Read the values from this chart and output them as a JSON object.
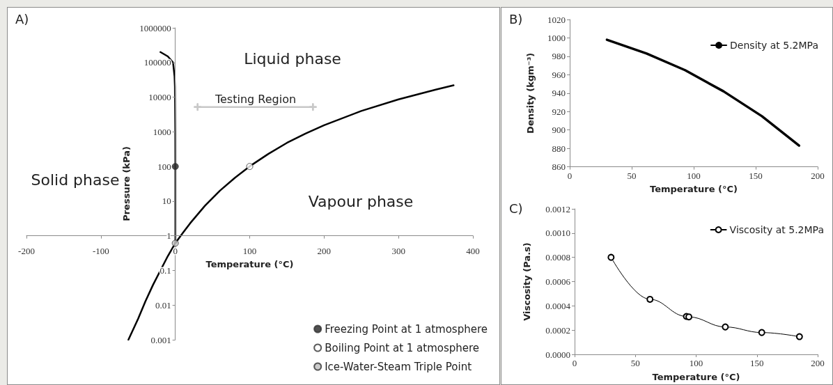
{
  "chart_data": [
    {
      "type": "line",
      "title": "A)",
      "xlabel": "Temperature (°C)",
      "ylabel": "Pressure (kPa)",
      "log": "y",
      "xlim": [
        -200,
        400
      ],
      "xticks": [
        -200,
        -100,
        0,
        100,
        200,
        300,
        400
      ],
      "ylim": [
        0.001,
        1000000
      ],
      "yticks": [
        0.001,
        0.01,
        0.1,
        1,
        10,
        100,
        1000,
        10000,
        100000,
        1000000
      ],
      "legend": "bottom right",
      "series": [
        {
          "color": "#000000",
          "x": [
            0.01,
            0,
            -0.1,
            -0.5,
            -1,
            -3,
            -10,
            -20
          ],
          "values": [
            0.61,
            100,
            1000,
            20000,
            40000,
            100000,
            150000,
            200000
          ]
        },
        {
          "color": "#000000",
          "x": [
            0.01,
            10,
            20,
            40,
            60,
            80,
            100,
            125,
            150,
            175,
            200,
            250,
            300,
            350,
            374
          ],
          "values": [
            0.61,
            1.2,
            2.3,
            7.4,
            20,
            47,
            101,
            230,
            480,
            890,
            1550,
            4000,
            8600,
            16500,
            22000
          ]
        },
        {
          "color": "#000000",
          "x": [
            -63,
            -50,
            -40,
            -30,
            -20,
            -10,
            0.01
          ],
          "values": [
            0.001,
            0.004,
            0.013,
            0.038,
            0.1,
            0.26,
            0.61
          ]
        },
        {
          "color": "#c8c8c8",
          "marker": "cross",
          "x": [
            30,
            185
          ],
          "values": [
            5200,
            5200
          ]
        },
        {
          "type": "scatter",
          "name": "Freezing Point at 1 atmosphere",
          "color": "#262626",
          "marker": "circle",
          "x": [
            0
          ],
          "values": [
            100
          ]
        },
        {
          "type": "scatter",
          "name": "Boiling Point at 1 atmosphere",
          "color": "#ffffff",
          "marker": "circle",
          "x": [
            100
          ],
          "values": [
            100
          ]
        },
        {
          "type": "scatter",
          "name": "Ice-Water-Steam Triple Point",
          "color": "#bfbfbf",
          "marker": "circle",
          "x": [
            0.01
          ],
          "values": [
            0.61
          ]
        }
      ],
      "annotations": [
        "Liquid phase",
        "Testing Region",
        "Solid phase",
        "Vapour phase"
      ]
    },
    {
      "type": "line",
      "title": "B)",
      "xlabel": "Temperature (°C)",
      "ylabel": "Density (kgm⁻³)",
      "xlim": [
        0,
        200
      ],
      "xticks": [
        0,
        50,
        100,
        150,
        200
      ],
      "ylim": [
        860,
        1020
      ],
      "yticks": [
        860,
        880,
        900,
        920,
        940,
        960,
        980,
        1000,
        1020
      ],
      "legend": "top right",
      "marker": "none",
      "series": [
        {
          "name": "Density at 5.2MPa",
          "color": "#000000",
          "x": [
            30,
            62,
            93,
            124,
            155,
            185
          ],
          "values": [
            998,
            983,
            965,
            942,
            915,
            883
          ]
        }
      ]
    },
    {
      "type": "line",
      "title": "C)",
      "xlabel": "Temperature (°C)",
      "ylabel": "Viscosity (Pa.s)",
      "xlim": [
        0,
        200
      ],
      "xticks": [
        0,
        50,
        100,
        150,
        200
      ],
      "ylim": [
        0,
        0.0012
      ],
      "yticks": [
        {
          "value": 0,
          "label": "0.0000"
        },
        0.0002,
        0.0004,
        0.0006,
        0.0008,
        {
          "value": 0.001,
          "label": "0.0010"
        },
        0.0012
      ],
      "legend": "top right",
      "marker": "circle",
      "series": [
        {
          "name": "Viscosity at 5.2MPa",
          "color": "#000000",
          "x": [
            30,
            62,
            92,
            94,
            124,
            154,
            185
          ],
          "values": [
            0.0008,
            0.000454,
            0.000313,
            0.000309,
            0.000226,
            0.00018,
            0.000146
          ]
        }
      ]
    }
  ]
}
